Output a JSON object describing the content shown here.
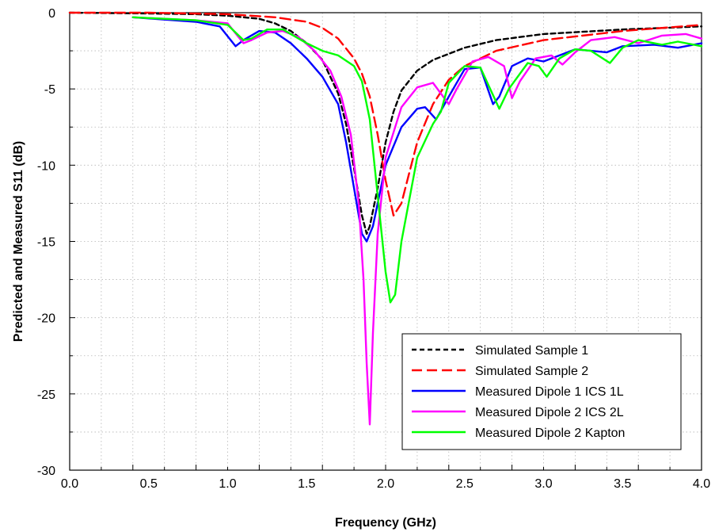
{
  "chart_data": {
    "type": "line",
    "title": "",
    "xlabel": "Frequency (GHz)",
    "ylabel": "Predicted and Measured S11 (dB)",
    "xlim": [
      0.0,
      4.0
    ],
    "ylim": [
      -30,
      0
    ],
    "xticks": [
      0.0,
      0.5,
      1.0,
      1.5,
      2.0,
      2.5,
      3.0,
      3.5,
      4.0
    ],
    "xtick_labels": [
      "0.0",
      "0.5",
      "1.0",
      "1.5",
      "2.0",
      "2.5",
      "3.0",
      "3.5",
      "4.0"
    ],
    "yticks": [
      0,
      -5,
      -10,
      -15,
      -20,
      -25,
      -30
    ],
    "ytick_labels": [
      "0",
      "-5",
      "-10",
      "-15",
      "-20",
      "-25",
      "-30"
    ],
    "grid": true,
    "legend_position": "bottom-right",
    "series": [
      {
        "name": "Simulated Sample 1",
        "color": "#000000",
        "dash": "short-dash",
        "points": [
          [
            0.0,
            0
          ],
          [
            0.5,
            -0.05
          ],
          [
            0.8,
            -0.1
          ],
          [
            1.0,
            -0.2
          ],
          [
            1.2,
            -0.4
          ],
          [
            1.3,
            -0.7
          ],
          [
            1.4,
            -1.2
          ],
          [
            1.5,
            -2.0
          ],
          [
            1.6,
            -3.1
          ],
          [
            1.7,
            -5.3
          ],
          [
            1.75,
            -7.3
          ],
          [
            1.8,
            -10.2
          ],
          [
            1.85,
            -13.3
          ],
          [
            1.88,
            -14.5
          ],
          [
            1.9,
            -14.0
          ],
          [
            1.95,
            -11.5
          ],
          [
            2.0,
            -8.5
          ],
          [
            2.05,
            -6.5
          ],
          [
            2.1,
            -5.1
          ],
          [
            2.2,
            -3.8
          ],
          [
            2.3,
            -3.1
          ],
          [
            2.5,
            -2.3
          ],
          [
            2.7,
            -1.8
          ],
          [
            3.0,
            -1.4
          ],
          [
            3.5,
            -1.1
          ],
          [
            4.0,
            -0.9
          ]
        ]
      },
      {
        "name": "Simulated Sample 2",
        "color": "#ff0000",
        "dash": "long-dash",
        "points": [
          [
            0.0,
            0
          ],
          [
            0.5,
            0
          ],
          [
            1.0,
            -0.1
          ],
          [
            1.3,
            -0.3
          ],
          [
            1.5,
            -0.6
          ],
          [
            1.6,
            -1.0
          ],
          [
            1.7,
            -1.7
          ],
          [
            1.8,
            -3.0
          ],
          [
            1.85,
            -4.0
          ],
          [
            1.9,
            -5.5
          ],
          [
            1.95,
            -8.0
          ],
          [
            2.0,
            -11.0
          ],
          [
            2.05,
            -13.3
          ],
          [
            2.1,
            -12.5
          ],
          [
            2.15,
            -10.5
          ],
          [
            2.2,
            -8.5
          ],
          [
            2.3,
            -6.0
          ],
          [
            2.4,
            -4.4
          ],
          [
            2.5,
            -3.5
          ],
          [
            2.7,
            -2.5
          ],
          [
            3.0,
            -1.8
          ],
          [
            3.5,
            -1.2
          ],
          [
            4.0,
            -0.8
          ]
        ]
      },
      {
        "name": "Measured Dipole 1 ICS 1L",
        "color": "#0000ff",
        "dash": "solid",
        "points": [
          [
            0.4,
            -0.3
          ],
          [
            0.6,
            -0.45
          ],
          [
            0.8,
            -0.6
          ],
          [
            0.95,
            -0.9
          ],
          [
            1.05,
            -2.2
          ],
          [
            1.1,
            -1.8
          ],
          [
            1.2,
            -1.2
          ],
          [
            1.3,
            -1.3
          ],
          [
            1.4,
            -2.0
          ],
          [
            1.5,
            -3.0
          ],
          [
            1.6,
            -4.2
          ],
          [
            1.7,
            -6.0
          ],
          [
            1.75,
            -8.5
          ],
          [
            1.8,
            -11.5
          ],
          [
            1.85,
            -14.5
          ],
          [
            1.88,
            -15.0
          ],
          [
            1.92,
            -14.0
          ],
          [
            2.0,
            -10.0
          ],
          [
            2.1,
            -7.5
          ],
          [
            2.2,
            -6.3
          ],
          [
            2.25,
            -6.2
          ],
          [
            2.32,
            -7.0
          ],
          [
            2.4,
            -5.5
          ],
          [
            2.5,
            -3.7
          ],
          [
            2.6,
            -3.6
          ],
          [
            2.68,
            -6.0
          ],
          [
            2.72,
            -5.5
          ],
          [
            2.8,
            -3.5
          ],
          [
            2.9,
            -3.0
          ],
          [
            3.0,
            -3.2
          ],
          [
            3.1,
            -2.8
          ],
          [
            3.2,
            -2.4
          ],
          [
            3.3,
            -2.5
          ],
          [
            3.4,
            -2.6
          ],
          [
            3.5,
            -2.2
          ],
          [
            3.7,
            -2.1
          ],
          [
            3.85,
            -2.3
          ],
          [
            4.0,
            -2.0
          ]
        ]
      },
      {
        "name": "Measured Dipole 2 ICS 2L",
        "color": "#ff00ff",
        "dash": "solid",
        "points": [
          [
            0.4,
            -0.3
          ],
          [
            0.6,
            -0.4
          ],
          [
            0.8,
            -0.5
          ],
          [
            1.0,
            -0.7
          ],
          [
            1.1,
            -2.0
          ],
          [
            1.15,
            -1.8
          ],
          [
            1.25,
            -1.3
          ],
          [
            1.35,
            -1.2
          ],
          [
            1.45,
            -1.6
          ],
          [
            1.55,
            -2.5
          ],
          [
            1.65,
            -3.8
          ],
          [
            1.72,
            -5.5
          ],
          [
            1.78,
            -8.0
          ],
          [
            1.83,
            -12.5
          ],
          [
            1.86,
            -17.5
          ],
          [
            1.88,
            -23.0
          ],
          [
            1.9,
            -27.0
          ],
          [
            1.92,
            -21.0
          ],
          [
            1.95,
            -14.5
          ],
          [
            2.0,
            -9.5
          ],
          [
            2.1,
            -6.2
          ],
          [
            2.2,
            -4.9
          ],
          [
            2.3,
            -4.6
          ],
          [
            2.4,
            -6.0
          ],
          [
            2.45,
            -5.0
          ],
          [
            2.55,
            -3.2
          ],
          [
            2.65,
            -2.9
          ],
          [
            2.75,
            -3.5
          ],
          [
            2.8,
            -5.6
          ],
          [
            2.85,
            -4.5
          ],
          [
            2.95,
            -3.0
          ],
          [
            3.05,
            -2.8
          ],
          [
            3.12,
            -3.4
          ],
          [
            3.2,
            -2.6
          ],
          [
            3.3,
            -1.8
          ],
          [
            3.45,
            -1.6
          ],
          [
            3.6,
            -2.0
          ],
          [
            3.75,
            -1.5
          ],
          [
            3.9,
            -1.4
          ],
          [
            4.0,
            -1.7
          ]
        ]
      },
      {
        "name": "Measured Dipole 2 Kapton",
        "color": "#00ff00",
        "dash": "solid",
        "points": [
          [
            0.4,
            -0.3
          ],
          [
            0.6,
            -0.4
          ],
          [
            0.8,
            -0.5
          ],
          [
            1.0,
            -0.8
          ],
          [
            1.1,
            -1.8
          ],
          [
            1.15,
            -1.7
          ],
          [
            1.25,
            -1.1
          ],
          [
            1.35,
            -1.1
          ],
          [
            1.5,
            -2.0
          ],
          [
            1.6,
            -2.5
          ],
          [
            1.7,
            -2.8
          ],
          [
            1.8,
            -3.5
          ],
          [
            1.85,
            -4.5
          ],
          [
            1.9,
            -7.0
          ],
          [
            1.95,
            -12.0
          ],
          [
            2.0,
            -17.0
          ],
          [
            2.03,
            -19.0
          ],
          [
            2.06,
            -18.5
          ],
          [
            2.1,
            -15.0
          ],
          [
            2.2,
            -9.5
          ],
          [
            2.3,
            -7.3
          ],
          [
            2.35,
            -6.5
          ],
          [
            2.4,
            -4.6
          ],
          [
            2.5,
            -3.5
          ],
          [
            2.6,
            -3.6
          ],
          [
            2.72,
            -6.3
          ],
          [
            2.78,
            -5.0
          ],
          [
            2.9,
            -3.3
          ],
          [
            2.97,
            -3.5
          ],
          [
            3.02,
            -4.2
          ],
          [
            3.1,
            -3.0
          ],
          [
            3.2,
            -2.4
          ],
          [
            3.3,
            -2.5
          ],
          [
            3.42,
            -3.3
          ],
          [
            3.5,
            -2.3
          ],
          [
            3.6,
            -1.8
          ],
          [
            3.75,
            -2.1
          ],
          [
            3.85,
            -1.9
          ],
          [
            4.0,
            -2.2
          ]
        ]
      }
    ]
  }
}
